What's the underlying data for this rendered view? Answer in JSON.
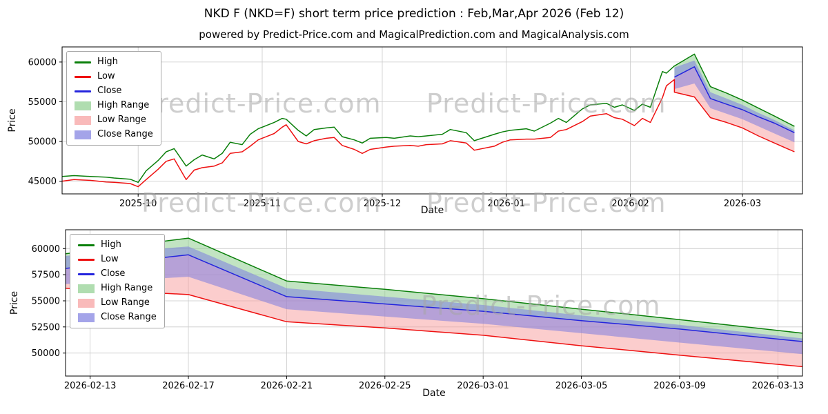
{
  "title": "NKD F (NKD=F) short term price prediction : Feb,Mar,Apr 2026 (Feb 12)",
  "subtitle": "powered by Predict-Price.com and MagicalPrediction.com and MagicalAnalysis.com",
  "watermark": "Predict-Price.com",
  "colors": {
    "high": "#0a7f0a",
    "low": "#ee1111",
    "close": "#2424dd",
    "high_range": "#8fce8f",
    "low_range": "#f79c9c",
    "close_range": "#7d7de0",
    "grid": "#c9c9c9"
  },
  "legend": [
    {
      "label": "High",
      "type": "line",
      "color": "#0a7f0a"
    },
    {
      "label": "Low",
      "type": "line",
      "color": "#ee1111"
    },
    {
      "label": "Close",
      "type": "line",
      "color": "#2424dd"
    },
    {
      "label": "High Range",
      "type": "patch",
      "color": "#8fce8f"
    },
    {
      "label": "Low Range",
      "type": "patch",
      "color": "#f79c9c"
    },
    {
      "label": "Close Range",
      "type": "patch",
      "color": "#7d7de0"
    }
  ],
  "chart_data": [
    {
      "type": "line",
      "id": "history",
      "xlabel": "Date",
      "ylabel": "Price",
      "xlim": [
        "2025-09-12",
        "2026-03-16"
      ],
      "ylim": [
        43400,
        61900
      ],
      "y_ticks": [
        45000,
        50000,
        55000,
        60000
      ],
      "x_ticks": [
        {
          "date": "2025-10-01",
          "label": "2025-10"
        },
        {
          "date": "2025-11-01",
          "label": "2025-11"
        },
        {
          "date": "2025-12-01",
          "label": "2025-12"
        },
        {
          "date": "2026-01-01",
          "label": "2026-01"
        },
        {
          "date": "2026-02-01",
          "label": "2026-02"
        },
        {
          "date": "2026-03-01",
          "label": "2026-03"
        }
      ],
      "series": {
        "dates": [
          "2025-09-12",
          "2025-09-15",
          "2025-09-17",
          "2025-09-19",
          "2025-09-23",
          "2025-09-25",
          "2025-09-29",
          "2025-10-01",
          "2025-10-03",
          "2025-10-06",
          "2025-10-08",
          "2025-10-10",
          "2025-10-13",
          "2025-10-15",
          "2025-10-17",
          "2025-10-20",
          "2025-10-22",
          "2025-10-24",
          "2025-10-27",
          "2025-10-29",
          "2025-10-31",
          "2025-11-04",
          "2025-11-06",
          "2025-11-07",
          "2025-11-10",
          "2025-11-12",
          "2025-11-14",
          "2025-11-17",
          "2025-11-19",
          "2025-11-21",
          "2025-11-24",
          "2025-11-26",
          "2025-11-28",
          "2025-12-02",
          "2025-12-04",
          "2025-12-08",
          "2025-12-10",
          "2025-12-12",
          "2025-12-16",
          "2025-12-18",
          "2025-12-22",
          "2025-12-24",
          "2025-12-29",
          "2025-12-31",
          "2026-01-02",
          "2026-01-06",
          "2026-01-08",
          "2026-01-12",
          "2026-01-14",
          "2026-01-16",
          "2026-01-20",
          "2026-01-22",
          "2026-01-26",
          "2026-01-28",
          "2026-01-30",
          "2026-02-02",
          "2026-02-04",
          "2026-02-06",
          "2026-02-09",
          "2026-02-10",
          "2026-02-12"
        ],
        "high": [
          45600,
          45700,
          45650,
          45600,
          45500,
          45400,
          45250,
          44850,
          46300,
          47600,
          48700,
          49100,
          46900,
          47700,
          48300,
          47800,
          48500,
          49900,
          49600,
          50900,
          51600,
          52400,
          52900,
          52800,
          51400,
          50700,
          51500,
          51700,
          51800,
          50600,
          50200,
          49800,
          50400,
          50500,
          50400,
          50700,
          50600,
          50700,
          50900,
          51500,
          51100,
          50100,
          50900,
          51200,
          51400,
          51600,
          51300,
          52300,
          52900,
          52400,
          54100,
          54600,
          54800,
          54300,
          54600,
          53900,
          54700,
          54300,
          58800,
          58600,
          59500
        ],
        "low": [
          45000,
          45200,
          45150,
          45100,
          44900,
          44850,
          44700,
          44300,
          45200,
          46500,
          47500,
          47800,
          45200,
          46400,
          46700,
          46900,
          47300,
          48500,
          48700,
          49400,
          50200,
          51000,
          51800,
          52100,
          50000,
          49700,
          50100,
          50400,
          50500,
          49500,
          49000,
          48500,
          49000,
          49300,
          49400,
          49500,
          49400,
          49600,
          49700,
          50100,
          49800,
          48900,
          49400,
          49900,
          50200,
          50300,
          50300,
          50500,
          51300,
          51500,
          52500,
          53200,
          53500,
          53000,
          52800,
          52000,
          52900,
          52400,
          55500,
          57000,
          57800
        ]
      },
      "prediction": {
        "dates": [
          "2026-02-12",
          "2026-02-17",
          "2026-02-21",
          "2026-02-25",
          "2026-03-01",
          "2026-03-05",
          "2026-03-09",
          "2026-03-14"
        ],
        "high": [
          59500,
          61000,
          56900,
          56100,
          55200,
          54200,
          53200,
          51900
        ],
        "low": [
          56200,
          55600,
          53000,
          52400,
          51700,
          50700,
          49800,
          48700
        ],
        "close": [
          58100,
          59400,
          55400,
          54700,
          54000,
          53100,
          52300,
          51100
        ],
        "close_upper": [
          59300,
          60200,
          56200,
          55400,
          54600,
          53600,
          52700,
          51400
        ],
        "close_lower": [
          56600,
          57300,
          54200,
          53500,
          52800,
          51900,
          51000,
          49900
        ]
      }
    },
    {
      "type": "line",
      "id": "forecast",
      "xlabel": "Date",
      "ylabel": "Price",
      "xlim": [
        "2026-02-12",
        "2026-03-14"
      ],
      "ylim": [
        47800,
        61800
      ],
      "y_ticks": [
        50000,
        52500,
        55000,
        57500,
        60000
      ],
      "x_ticks": [
        {
          "date": "2026-02-13",
          "label": "2026-02-13"
        },
        {
          "date": "2026-02-17",
          "label": "2026-02-17"
        },
        {
          "date": "2026-02-21",
          "label": "2026-02-21"
        },
        {
          "date": "2026-02-25",
          "label": "2026-02-25"
        },
        {
          "date": "2026-03-01",
          "label": "2026-03-01"
        },
        {
          "date": "2026-03-05",
          "label": "2026-03-05"
        },
        {
          "date": "2026-03-09",
          "label": "2026-03-09"
        },
        {
          "date": "2026-03-13",
          "label": "2026-03-13"
        }
      ],
      "prediction": {
        "dates": [
          "2026-02-12",
          "2026-02-17",
          "2026-02-21",
          "2026-02-25",
          "2026-03-01",
          "2026-03-05",
          "2026-03-09",
          "2026-03-14"
        ],
        "high": [
          59500,
          61000,
          56900,
          56100,
          55200,
          54200,
          53200,
          51900
        ],
        "low": [
          56200,
          55600,
          53000,
          52400,
          51700,
          50700,
          49800,
          48700
        ],
        "close": [
          58100,
          59400,
          55400,
          54700,
          54000,
          53100,
          52300,
          51100
        ],
        "close_upper": [
          59300,
          60200,
          56200,
          55400,
          54600,
          53600,
          52700,
          51400
        ],
        "close_lower": [
          56600,
          57300,
          54200,
          53500,
          52800,
          51900,
          51000,
          49900
        ]
      }
    }
  ]
}
